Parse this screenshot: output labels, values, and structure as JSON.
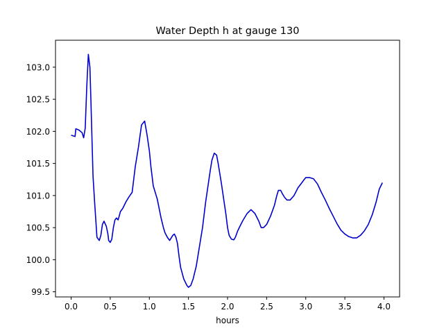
{
  "chart_data": {
    "type": "line",
    "title": "Water Depth h at gauge 130",
    "xlabel": "hours",
    "ylabel": "",
    "xlim": [
      -0.2,
      4.2
    ],
    "ylim": [
      99.42,
      103.42
    ],
    "xticks": [
      0.0,
      0.5,
      1.0,
      1.5,
      2.0,
      2.5,
      3.0,
      3.5,
      4.0
    ],
    "xtick_labels": [
      "0.0",
      "0.5",
      "1.0",
      "1.5",
      "2.0",
      "2.5",
      "3.0",
      "3.5",
      "4.0"
    ],
    "yticks": [
      99.5,
      100.0,
      100.5,
      101.0,
      101.5,
      102.0,
      102.5,
      103.0
    ],
    "ytick_labels": [
      "99.5",
      "100.0",
      "100.5",
      "101.0",
      "101.5",
      "102.0",
      "102.5",
      "103.0"
    ],
    "grid": false,
    "series": [
      {
        "color": "#0000cc",
        "x": [
          0.0,
          0.05,
          0.06,
          0.1,
          0.14,
          0.16,
          0.18,
          0.2,
          0.22,
          0.24,
          0.25,
          0.28,
          0.3,
          0.33,
          0.36,
          0.38,
          0.4,
          0.42,
          0.45,
          0.47,
          0.48,
          0.5,
          0.52,
          0.54,
          0.56,
          0.58,
          0.6,
          0.61,
          0.63,
          0.66,
          0.7,
          0.74,
          0.78,
          0.8,
          0.82,
          0.86,
          0.9,
          0.94,
          0.97,
          1.0,
          1.02,
          1.05,
          1.1,
          1.15,
          1.18,
          1.2,
          1.23,
          1.26,
          1.3,
          1.32,
          1.34,
          1.36,
          1.38,
          1.4,
          1.44,
          1.48,
          1.5,
          1.53,
          1.56,
          1.6,
          1.64,
          1.68,
          1.7,
          1.72,
          1.75,
          1.78,
          1.8,
          1.83,
          1.86,
          1.88,
          1.9,
          1.92,
          1.95,
          1.98,
          2.0,
          2.02,
          2.05,
          2.08,
          2.1,
          2.13,
          2.17,
          2.2,
          2.25,
          2.3,
          2.35,
          2.4,
          2.43,
          2.46,
          2.5,
          2.55,
          2.6,
          2.63,
          2.65,
          2.68,
          2.7,
          2.73,
          2.76,
          2.8,
          2.85,
          2.9,
          2.95,
          2.98,
          3.0,
          3.05,
          3.1,
          3.15,
          3.2,
          3.25,
          3.3,
          3.35,
          3.4,
          3.45,
          3.5,
          3.55,
          3.6,
          3.65,
          3.7,
          3.75,
          3.8,
          3.85,
          3.9,
          3.92,
          3.94,
          3.96,
          3.98
        ],
        "y": [
          101.94,
          101.92,
          102.04,
          102.02,
          101.98,
          101.9,
          102.05,
          102.7,
          103.2,
          103.0,
          102.6,
          101.3,
          100.9,
          100.35,
          100.3,
          100.38,
          100.55,
          100.6,
          100.52,
          100.4,
          100.3,
          100.27,
          100.32,
          100.5,
          100.62,
          100.65,
          100.62,
          100.66,
          100.75,
          100.8,
          100.9,
          100.98,
          101.05,
          101.25,
          101.45,
          101.75,
          102.1,
          102.16,
          101.95,
          101.7,
          101.45,
          101.15,
          100.95,
          100.65,
          100.5,
          100.42,
          100.35,
          100.3,
          100.38,
          100.4,
          100.35,
          100.25,
          100.05,
          99.88,
          99.7,
          99.6,
          99.57,
          99.6,
          99.7,
          99.9,
          100.2,
          100.5,
          100.7,
          100.9,
          101.15,
          101.4,
          101.55,
          101.66,
          101.63,
          101.5,
          101.35,
          101.2,
          100.95,
          100.7,
          100.5,
          100.38,
          100.32,
          100.31,
          100.35,
          100.45,
          100.55,
          100.62,
          100.72,
          100.78,
          100.72,
          100.6,
          100.5,
          100.5,
          100.55,
          100.68,
          100.85,
          101.0,
          101.08,
          101.08,
          101.03,
          100.97,
          100.93,
          100.93,
          101.0,
          101.12,
          101.2,
          101.25,
          101.28,
          101.28,
          101.26,
          101.18,
          101.05,
          100.93,
          100.8,
          100.68,
          100.56,
          100.46,
          100.4,
          100.36,
          100.34,
          100.34,
          100.38,
          100.45,
          100.55,
          100.7,
          100.9,
          101.0,
          101.1,
          101.15,
          101.2
        ]
      }
    ]
  }
}
